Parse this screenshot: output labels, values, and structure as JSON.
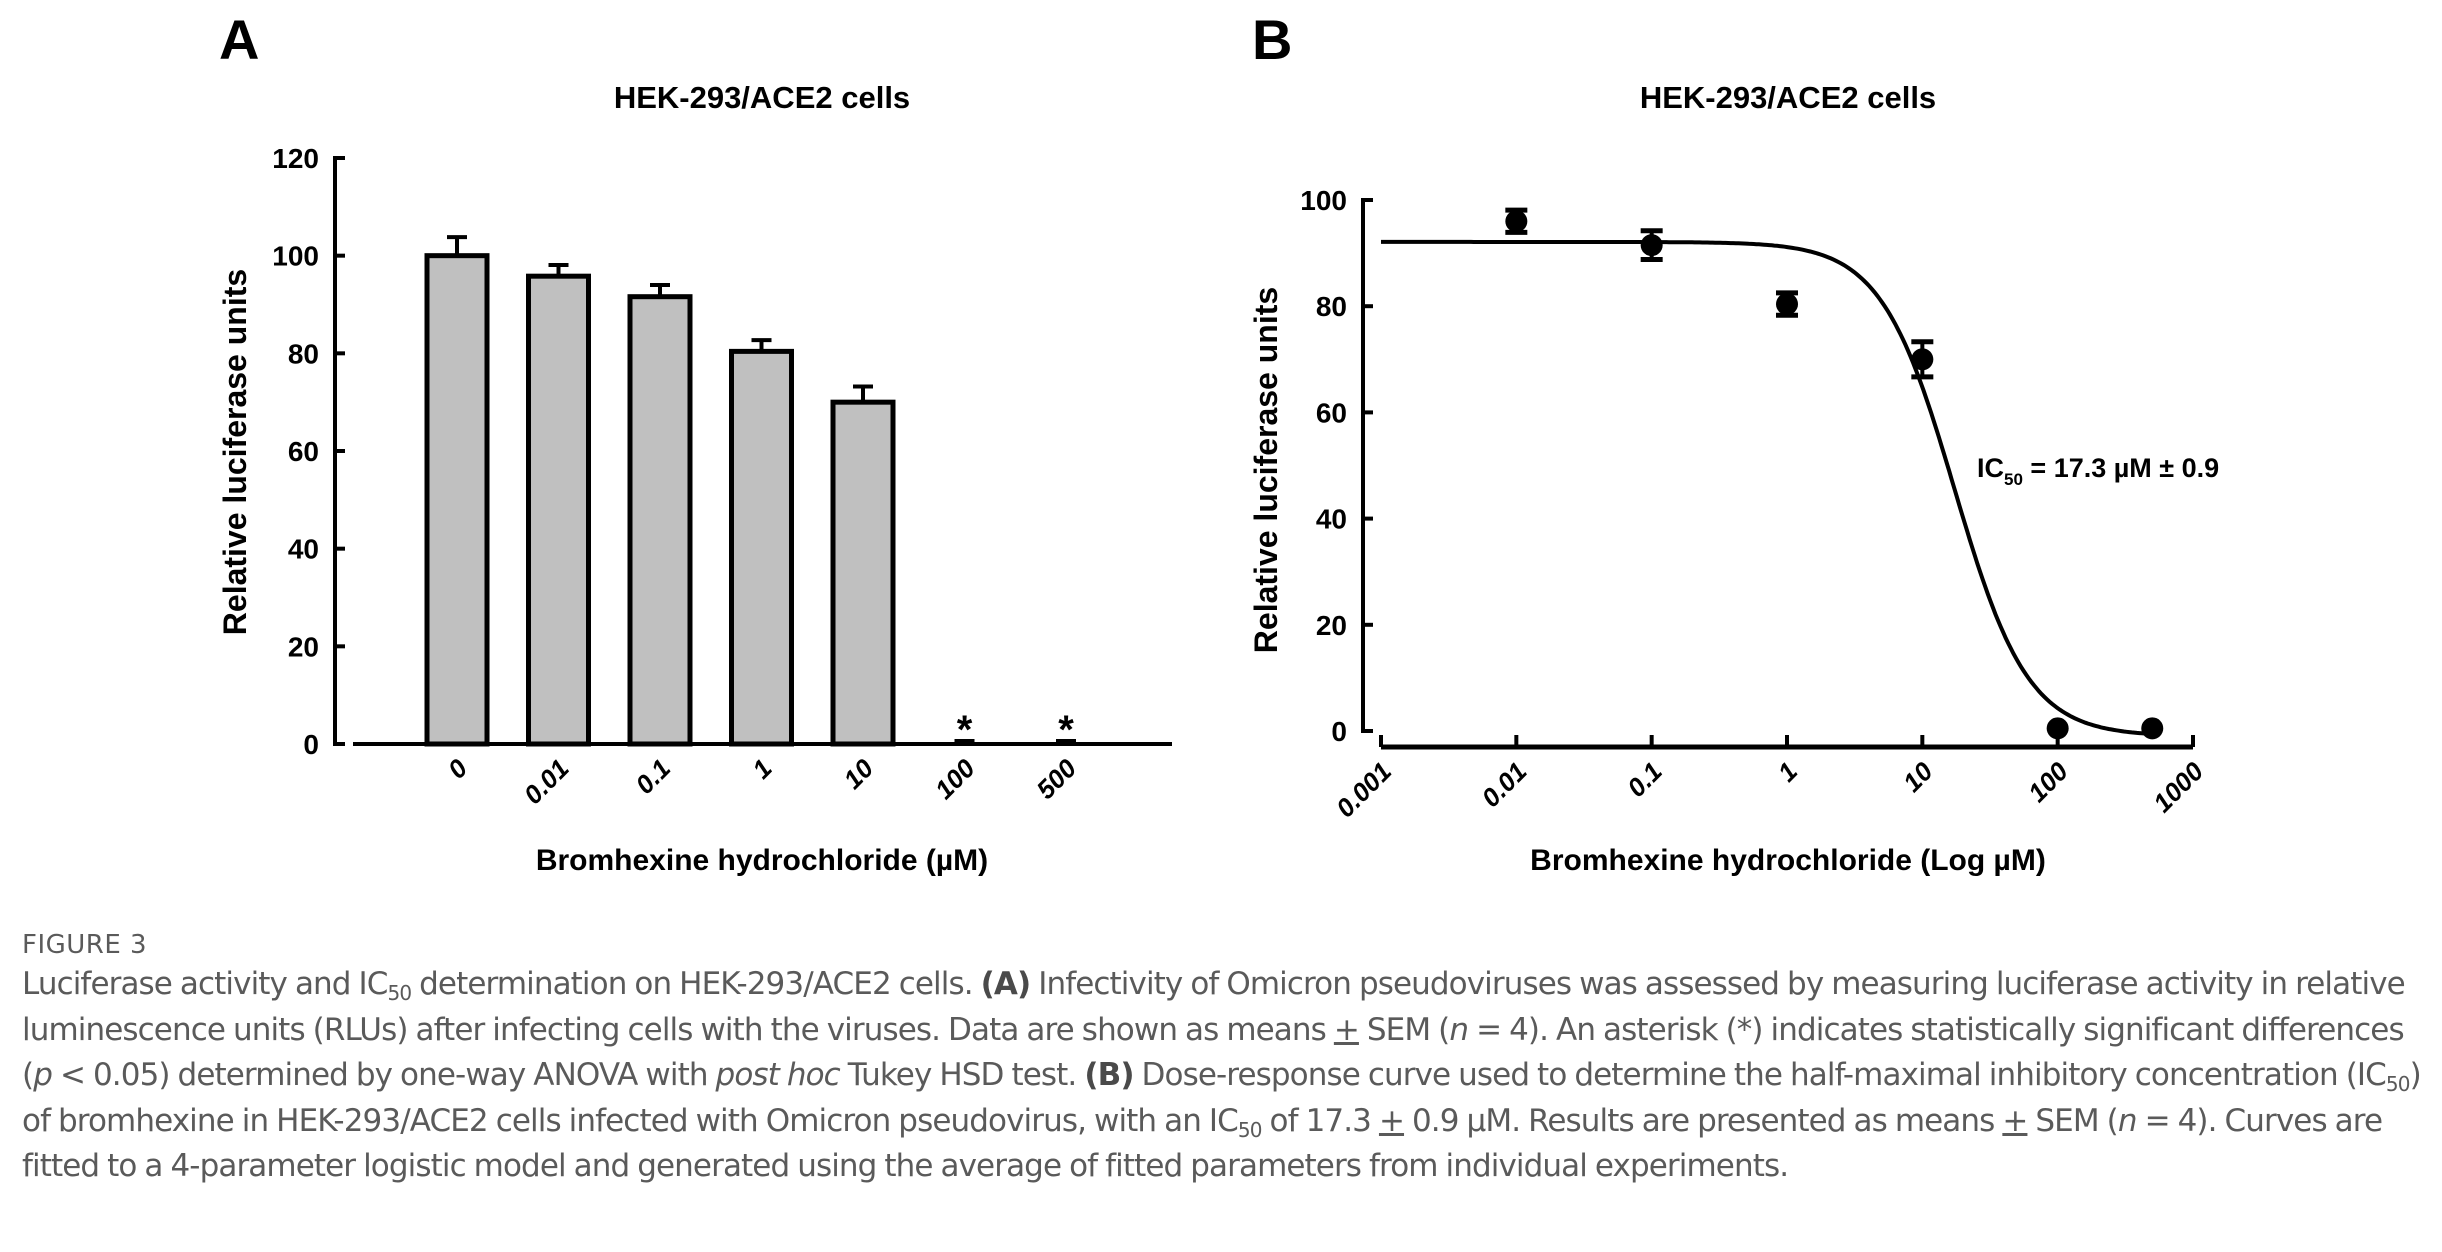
{
  "figure": {
    "label": "FIGURE 3",
    "caption": {
      "line1_pre": "Luciferase activity and IC",
      "sub50": "50",
      "line1_post": " determination on HEK-293/ACE2 cells. ",
      "panel_a": "(A)",
      "a_text1": " Infectivity of Omicron pseudoviruses was assessed by measuring luciferase activity in relative luminescence units (RLUs) after infecting cells with the viruses. Data are shown as means ",
      "pm": "+",
      "a_text2": " SEM (",
      "n_italic": "n",
      "a_text3": " = 4). An asterisk (*) indicates statistically significant differences (",
      "p_italic": "p",
      "a_text4": " < 0.05) determined by one-way ANOVA with ",
      "posthoc_italic": "post hoc",
      "a_text5": " Tukey HSD test. ",
      "panel_b": "(B)",
      "b_text1": " Dose-response curve used to determine the half-maximal inhibitory concentration (IC",
      "b_text2": ") of bromhexine in HEK-293/ACE2 cells infected with Omicron pseudovirus, with an IC",
      "b_text3": " of 17.3 ",
      "b_text4": " 0.9 µM. Results are presented as means ",
      "b_text5": " SEM (",
      "b_text6": " = 4). Curves are fitted to a 4-parameter logistic model and generated using the average of fitted parameters from individual experiments."
    }
  },
  "chart_data": [
    {
      "panel": "A",
      "type": "bar",
      "title": "HEK-293/ACE2 cells",
      "xlabel": "Bromhexine hydrochloride (µM)",
      "ylabel": "Relative luciferase units",
      "categories": [
        "0",
        "0.01",
        "0.1",
        "1",
        "10",
        "100",
        "500"
      ],
      "values": [
        100,
        95.8,
        91.6,
        80.4,
        70.0,
        0.3,
        0.3
      ],
      "error_sem": [
        3.8,
        2.3,
        2.4,
        2.3,
        3.2,
        0,
        0
      ],
      "significant": [
        false,
        false,
        false,
        false,
        false,
        true,
        true
      ],
      "significance_marker": "*",
      "ylim": [
        0,
        120
      ],
      "yticks": [
        0,
        20,
        40,
        60,
        80,
        100,
        120
      ],
      "bar_color": "#c0c0c0",
      "grid": false
    },
    {
      "panel": "B",
      "type": "scatter",
      "title": "HEK-293/ACE2 cells",
      "xlabel": "Bromhexine hydrochloride (Log µM)",
      "ylabel": "Relative luciferase units",
      "xscale": "log",
      "xlim": [
        0.001,
        1000
      ],
      "xticks": [
        "0.001",
        "0.01",
        "0.1",
        "1",
        "10",
        "100",
        "1000"
      ],
      "ylim": [
        0,
        100
      ],
      "yticks": [
        0,
        20,
        40,
        60,
        80,
        100
      ],
      "points": [
        {
          "x": 0.01,
          "y": 96.0,
          "sem": 2.1
        },
        {
          "x": 0.1,
          "y": 91.5,
          "sem": 2.7
        },
        {
          "x": 1,
          "y": 80.4,
          "sem": 2.1
        },
        {
          "x": 10,
          "y": 70.0,
          "sem": 3.3
        },
        {
          "x": 100,
          "y": 0.5,
          "sem": 0.3
        },
        {
          "x": 500,
          "y": 0.5,
          "sem": 0.3
        }
      ],
      "fit": {
        "model": "4-parameter logistic",
        "top": 92.1,
        "bottom": -1.0,
        "ic50": 17.3,
        "hill": 1.6,
        "x_range": [
          0.001,
          500
        ]
      },
      "annotation": {
        "prefix": "IC",
        "sub": "50",
        "text": " = 17.3 µM ± 0.9"
      },
      "grid": false
    }
  ]
}
